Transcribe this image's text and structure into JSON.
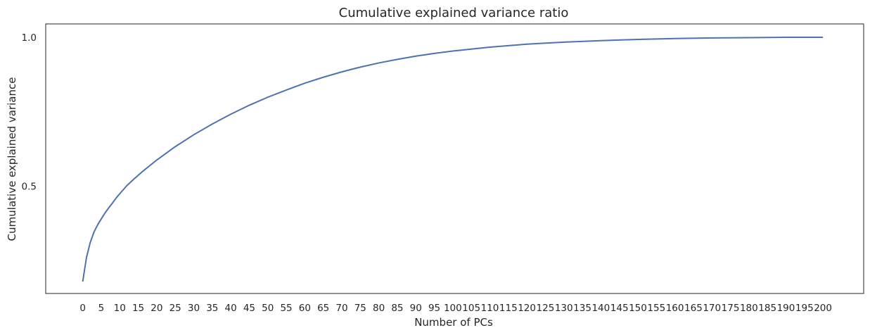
{
  "chart_data": {
    "type": "line",
    "title": "Cumulative explained variance ratio",
    "xlabel": "Number of PCs",
    "ylabel": "Cumulative explained variance",
    "xlim": [
      -10,
      211
    ],
    "ylim": [
      0.14,
      1.045
    ],
    "xticks": [
      0,
      5,
      10,
      15,
      20,
      25,
      30,
      35,
      40,
      45,
      50,
      55,
      60,
      65,
      70,
      75,
      80,
      85,
      90,
      95,
      100,
      105,
      110,
      115,
      120,
      125,
      130,
      135,
      140,
      145,
      150,
      155,
      160,
      165,
      170,
      175,
      180,
      185,
      190,
      195,
      200
    ],
    "yticks": [
      0.5,
      1.0
    ],
    "ytick_labels": [
      "0.5",
      "1.0"
    ],
    "grid": false,
    "series": [
      {
        "color": "#4c72b0",
        "x": [
          0,
          1,
          2,
          3,
          4,
          5,
          6,
          7,
          8,
          9,
          10,
          12,
          14,
          16,
          18,
          20,
          25,
          30,
          35,
          40,
          45,
          50,
          55,
          60,
          65,
          70,
          75,
          80,
          85,
          90,
          95,
          100,
          110,
          120,
          130,
          140,
          150,
          160,
          170,
          180,
          190,
          200
        ],
        "values": [
          0.18,
          0.26,
          0.31,
          0.345,
          0.37,
          0.39,
          0.41,
          0.427,
          0.443,
          0.46,
          0.475,
          0.503,
          0.526,
          0.548,
          0.568,
          0.588,
          0.633,
          0.673,
          0.709,
          0.742,
          0.772,
          0.799,
          0.823,
          0.846,
          0.866,
          0.884,
          0.9,
          0.914,
          0.926,
          0.937,
          0.946,
          0.954,
          0.967,
          0.977,
          0.984,
          0.989,
          0.993,
          0.996,
          0.998,
          0.999,
          1.0,
          1.0
        ]
      }
    ]
  }
}
